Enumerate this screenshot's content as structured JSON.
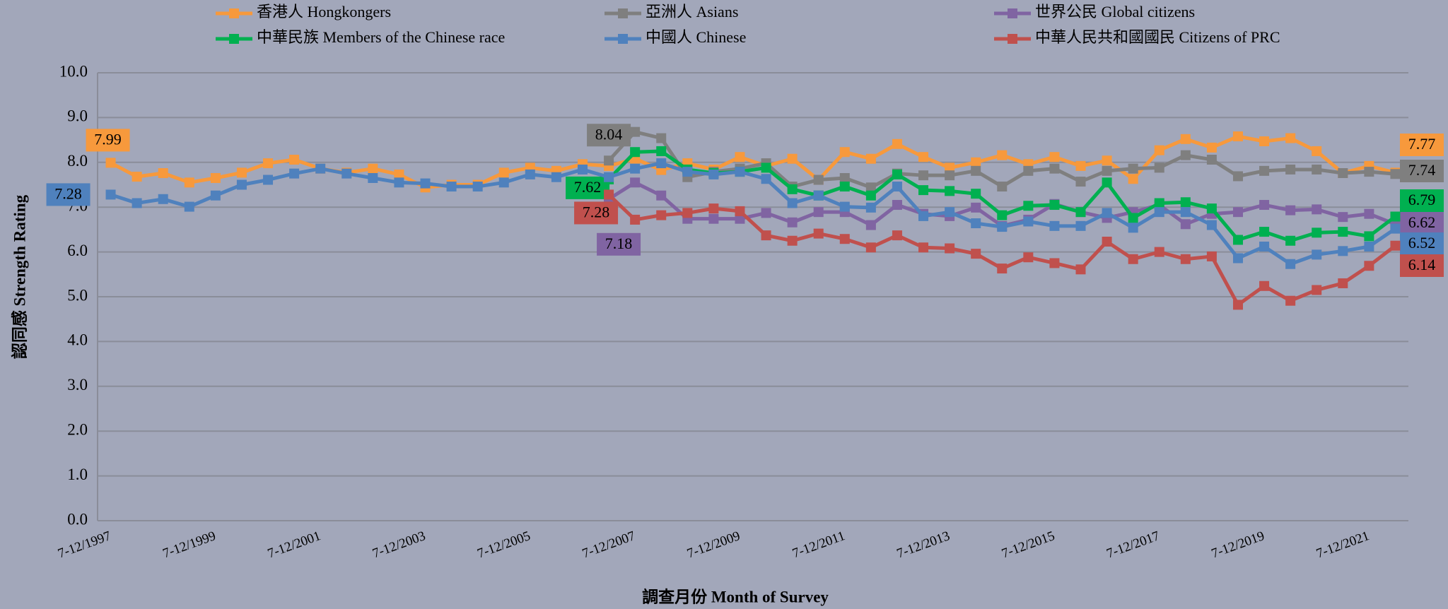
{
  "chart_data": {
    "type": "line",
    "x_label": "調查月份 Month of Survey",
    "y_label": "認同感 Strength Rating",
    "categories": [
      "7-12/1997",
      null,
      null,
      null,
      "7-12/1999",
      null,
      null,
      null,
      "7-12/2001",
      null,
      null,
      null,
      "7-12/2003",
      null,
      null,
      null,
      "7-12/2005",
      null,
      null,
      null,
      "7-12/2007",
      null,
      null,
      null,
      "7-12/2009",
      null,
      null,
      null,
      "7-12/2011",
      null,
      null,
      null,
      "7-12/2013",
      null,
      null,
      null,
      "7-12/2015",
      null,
      null,
      null,
      "7-12/2017",
      null,
      null,
      null,
      "7-12/2019",
      null,
      null,
      null,
      "7-12/2021",
      null
    ],
    "series": [
      {
        "name": "香港人 Hongkongers",
        "color": "#f7993c",
        "values": [
          7.99,
          7.68,
          7.76,
          7.55,
          7.65,
          7.77,
          7.98,
          8.06,
          7.86,
          7.77,
          7.86,
          7.73,
          7.44,
          7.5,
          7.5,
          7.77,
          7.88,
          7.81,
          7.96,
          7.92,
          8.08,
          7.83,
          7.98,
          7.84,
          8.12,
          7.92,
          8.08,
          7.61,
          8.23,
          8.08,
          8.41,
          8.12,
          7.88,
          8.0,
          8.16,
          7.96,
          8.12,
          7.92,
          8.04,
          7.63,
          8.27,
          8.52,
          8.33,
          8.58,
          8.47,
          8.54,
          8.25,
          7.76,
          7.92,
          7.77
        ]
      },
      {
        "name": "亞洲人 Asians",
        "color": "#7f7f7f",
        "values": [
          null,
          null,
          null,
          null,
          null,
          null,
          null,
          null,
          null,
          null,
          null,
          null,
          null,
          null,
          null,
          null,
          null,
          null,
          null,
          8.04,
          8.68,
          8.54,
          7.67,
          7.79,
          7.86,
          7.98,
          7.46,
          7.61,
          7.65,
          7.44,
          7.75,
          7.71,
          7.71,
          7.81,
          7.46,
          7.81,
          7.86,
          7.57,
          7.81,
          7.86,
          7.88,
          8.16,
          8.06,
          7.69,
          7.81,
          7.84,
          7.84,
          7.76,
          7.79,
          7.74
        ]
      },
      {
        "name": "世界公民 Global citizens",
        "color": "#8064a2",
        "values": [
          null,
          null,
          null,
          null,
          null,
          null,
          null,
          null,
          null,
          null,
          null,
          null,
          null,
          null,
          null,
          null,
          null,
          null,
          null,
          7.18,
          7.55,
          7.26,
          6.74,
          6.74,
          6.74,
          6.87,
          6.66,
          6.89,
          6.89,
          6.6,
          7.05,
          6.85,
          6.8,
          6.99,
          6.58,
          6.72,
          7.07,
          6.89,
          6.76,
          6.89,
          7.05,
          6.62,
          6.85,
          6.89,
          7.05,
          6.93,
          6.95,
          6.78,
          6.85,
          6.62
        ]
      },
      {
        "name": "中華民族 Members of the Chinese race",
        "color": "#00b050",
        "values": [
          null,
          null,
          null,
          null,
          null,
          null,
          null,
          null,
          null,
          null,
          null,
          null,
          null,
          null,
          null,
          null,
          null,
          null,
          null,
          7.62,
          8.23,
          8.25,
          7.84,
          7.76,
          7.79,
          7.88,
          7.4,
          7.26,
          7.46,
          7.26,
          7.73,
          7.38,
          7.36,
          7.3,
          6.82,
          7.03,
          7.05,
          6.89,
          7.55,
          6.76,
          7.09,
          7.11,
          6.97,
          6.27,
          6.45,
          6.25,
          6.43,
          6.45,
          6.35,
          6.79
        ]
      },
      {
        "name": "中國人 Chinese",
        "color": "#4f81bd",
        "values": [
          7.28,
          7.09,
          7.18,
          7.01,
          7.26,
          7.5,
          7.61,
          7.75,
          7.86,
          7.75,
          7.65,
          7.55,
          7.53,
          7.46,
          7.46,
          7.55,
          7.73,
          7.67,
          7.84,
          7.67,
          7.86,
          7.98,
          7.79,
          7.73,
          7.79,
          7.63,
          7.09,
          7.26,
          7.01,
          6.99,
          7.46,
          6.8,
          6.89,
          6.64,
          6.56,
          6.68,
          6.58,
          6.58,
          6.87,
          6.54,
          6.89,
          6.89,
          6.6,
          5.86,
          6.12,
          5.73,
          5.94,
          6.02,
          6.12,
          6.52
        ]
      },
      {
        "name": "中華人民共和國國民 Citizens of PRC",
        "color": "#c0504d",
        "values": [
          null,
          null,
          null,
          null,
          null,
          null,
          null,
          null,
          null,
          null,
          null,
          null,
          null,
          null,
          null,
          null,
          null,
          null,
          null,
          7.28,
          6.72,
          6.82,
          6.87,
          6.97,
          6.91,
          6.37,
          6.25,
          6.41,
          6.29,
          6.1,
          6.37,
          6.1,
          6.08,
          5.96,
          5.63,
          5.88,
          5.75,
          5.61,
          6.23,
          5.84,
          6.0,
          5.84,
          5.9,
          4.82,
          5.24,
          4.91,
          5.15,
          5.3,
          5.69,
          6.14
        ]
      }
    ],
    "data_labels": "first_and_last",
    "ylim": [
      0,
      10
    ],
    "yticks": [
      {
        "value": 0,
        "label": "0.0"
      },
      {
        "value": 1,
        "label": "1.0"
      },
      {
        "value": 2,
        "label": "2.0"
      },
      {
        "value": 3,
        "label": "3.0"
      },
      {
        "value": 4,
        "label": "4.0"
      },
      {
        "value": 5,
        "label": "5.0"
      },
      {
        "value": 6,
        "label": "6.0"
      },
      {
        "value": 7,
        "label": "7.0"
      },
      {
        "value": 8,
        "label": "8.0"
      },
      {
        "value": 9,
        "label": "9.0"
      },
      {
        "value": 10,
        "label": "10.0"
      }
    ],
    "grid": true,
    "legend": "top"
  }
}
